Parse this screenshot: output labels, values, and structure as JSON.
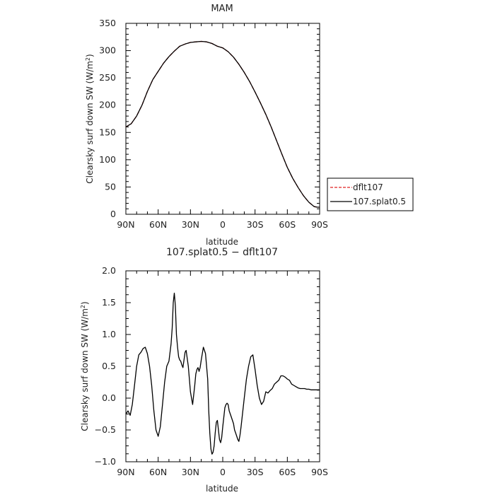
{
  "chart_data": [
    {
      "type": "line",
      "title": "MAM",
      "xlabel": "latitude",
      "ylabel": "Clearsky surf down SW (W/m²)",
      "ylabel_parts": {
        "main": "Clearsky surf down SW (W/m",
        "sup": "2",
        "tail": ")"
      },
      "xlim": [
        90,
        -90
      ],
      "ylim": [
        0,
        350
      ],
      "x_ticks": [
        {
          "value": 90,
          "label": "90N"
        },
        {
          "value": 60,
          "label": "60N"
        },
        {
          "value": 30,
          "label": "30N"
        },
        {
          "value": 0,
          "label": "0"
        },
        {
          "value": -30,
          "label": "30S"
        },
        {
          "value": -60,
          "label": "60S"
        },
        {
          "value": -90,
          "label": "90S"
        }
      ],
      "y_ticks": [
        {
          "value": 0,
          "label": "0"
        },
        {
          "value": 50,
          "label": "50"
        },
        {
          "value": 100,
          "label": "100"
        },
        {
          "value": 150,
          "label": "150"
        },
        {
          "value": 200,
          "label": "200"
        },
        {
          "value": 250,
          "label": "250"
        },
        {
          "value": 300,
          "label": "300"
        },
        {
          "value": 350,
          "label": "350"
        }
      ],
      "legend": {
        "placement": "right",
        "entries": [
          "dflt107",
          "107.splat0.5"
        ]
      },
      "series": [
        {
          "name": "dflt107",
          "color": "#e02020",
          "dash": "dashed",
          "x": [
            90,
            85,
            80,
            75,
            70,
            65,
            60,
            55,
            50,
            45,
            40,
            35,
            30,
            25,
            20,
            15,
            10,
            5,
            0,
            -5,
            -10,
            -15,
            -20,
            -25,
            -30,
            -35,
            -40,
            -45,
            -50,
            -55,
            -60,
            -65,
            -70,
            -75,
            -80,
            -85,
            -88,
            -90
          ],
          "y": [
            160,
            166,
            180,
            200,
            225,
            247,
            262,
            277,
            289,
            299,
            308,
            312,
            315,
            316,
            317,
            316,
            313,
            308,
            305,
            298,
            288,
            275,
            260,
            243,
            224,
            204,
            183,
            160,
            135,
            110,
            86,
            66,
            49,
            34,
            22,
            14,
            13,
            13
          ]
        },
        {
          "name": "107.splat0.5",
          "color": "#000000",
          "dash": "solid",
          "x": [
            90,
            85,
            80,
            75,
            70,
            65,
            60,
            55,
            50,
            45,
            40,
            35,
            30,
            25,
            20,
            15,
            10,
            5,
            0,
            -5,
            -10,
            -15,
            -20,
            -25,
            -30,
            -35,
            -40,
            -45,
            -50,
            -55,
            -60,
            -65,
            -70,
            -75,
            -80,
            -85,
            -88,
            -90
          ],
          "y": [
            160,
            166,
            180,
            200,
            225,
            247,
            262,
            277,
            289,
            299,
            308,
            312,
            315,
            316,
            317,
            316,
            313,
            308,
            305,
            298,
            288,
            275,
            260,
            243,
            224,
            204,
            183,
            160,
            135,
            110,
            86,
            66,
            49,
            34,
            22,
            14,
            13,
            13
          ]
        }
      ]
    },
    {
      "type": "line",
      "title": "107.splat0.5 − dflt107",
      "xlabel": "latitude",
      "ylabel": "Clearsky surf down SW (W/m²)",
      "ylabel_parts": {
        "main": "Clearsky surf down SW (W/m",
        "sup": "2",
        "tail": ")"
      },
      "xlim": [
        90,
        -90
      ],
      "ylim": [
        -1.0,
        2.0
      ],
      "x_ticks": [
        {
          "value": 90,
          "label": "90N"
        },
        {
          "value": 60,
          "label": "60N"
        },
        {
          "value": 30,
          "label": "30N"
        },
        {
          "value": 0,
          "label": "0"
        },
        {
          "value": -30,
          "label": "30S"
        },
        {
          "value": -60,
          "label": "60S"
        },
        {
          "value": -90,
          "label": "90S"
        }
      ],
      "y_ticks": [
        {
          "value": -1.0,
          "label": "−1.0"
        },
        {
          "value": -0.5,
          "label": "−0.5"
        },
        {
          "value": 0.0,
          "label": "0.0"
        },
        {
          "value": 0.5,
          "label": "0.5"
        },
        {
          "value": 1.0,
          "label": "1.0"
        },
        {
          "value": 1.5,
          "label": "1.5"
        },
        {
          "value": 2.0,
          "label": "2.0"
        }
      ],
      "series": [
        {
          "color": "#000000",
          "dash": "solid",
          "x": [
            90,
            88,
            86,
            84,
            82,
            80,
            78,
            76,
            74,
            72,
            70,
            68,
            66,
            64,
            62,
            60,
            58,
            56,
            54,
            52,
            50,
            48,
            47,
            46,
            45,
            44,
            43,
            42,
            41,
            40,
            39,
            38,
            37,
            36,
            35,
            34,
            32,
            30,
            28,
            26,
            25,
            24,
            23,
            22,
            21,
            20,
            18,
            16,
            14,
            13,
            12,
            11,
            10,
            9,
            8,
            7,
            6,
            5,
            4,
            3,
            2,
            1,
            0,
            -1,
            -2,
            -3,
            -4,
            -5,
            -6,
            -8,
            -10,
            -11,
            -12,
            -13,
            -14,
            -15,
            -16,
            -17,
            -18,
            -20,
            -22,
            -24,
            -26,
            -28,
            -30,
            -32,
            -34,
            -36,
            -38,
            -40,
            -42,
            -44,
            -46,
            -48,
            -50,
            -52,
            -54,
            -56,
            -58,
            -60,
            -62,
            -64,
            -66,
            -68,
            -70,
            -72,
            -74,
            -76,
            -78,
            -80,
            -82,
            -84,
            -86,
            -88,
            -90
          ],
          "y": [
            -0.25,
            -0.2,
            -0.27,
            -0.1,
            0.2,
            0.5,
            0.68,
            0.72,
            0.78,
            0.8,
            0.7,
            0.5,
            0.2,
            -0.2,
            -0.5,
            -0.6,
            -0.45,
            -0.1,
            0.25,
            0.5,
            0.58,
            0.85,
            1.1,
            1.5,
            1.65,
            1.45,
            1.0,
            0.8,
            0.65,
            0.6,
            0.58,
            0.52,
            0.48,
            0.6,
            0.72,
            0.75,
            0.5,
            0.1,
            -0.1,
            0.2,
            0.38,
            0.45,
            0.48,
            0.42,
            0.48,
            0.6,
            0.8,
            0.7,
            0.3,
            -0.2,
            -0.55,
            -0.8,
            -0.88,
            -0.85,
            -0.75,
            -0.55,
            -0.38,
            -0.35,
            -0.5,
            -0.65,
            -0.7,
            -0.62,
            -0.45,
            -0.3,
            -0.15,
            -0.1,
            -0.08,
            -0.1,
            -0.2,
            -0.3,
            -0.4,
            -0.5,
            -0.55,
            -0.6,
            -0.65,
            -0.68,
            -0.58,
            -0.45,
            -0.3,
            0.0,
            0.3,
            0.5,
            0.65,
            0.68,
            0.45,
            0.2,
            0.0,
            -0.1,
            -0.05,
            0.1,
            0.08,
            0.12,
            0.15,
            0.22,
            0.25,
            0.28,
            0.35,
            0.35,
            0.33,
            0.3,
            0.28,
            0.22,
            0.2,
            0.18,
            0.16,
            0.15,
            0.15,
            0.15,
            0.14,
            0.14,
            0.13,
            0.13,
            0.13,
            0.13,
            0.13
          ]
        }
      ]
    }
  ]
}
